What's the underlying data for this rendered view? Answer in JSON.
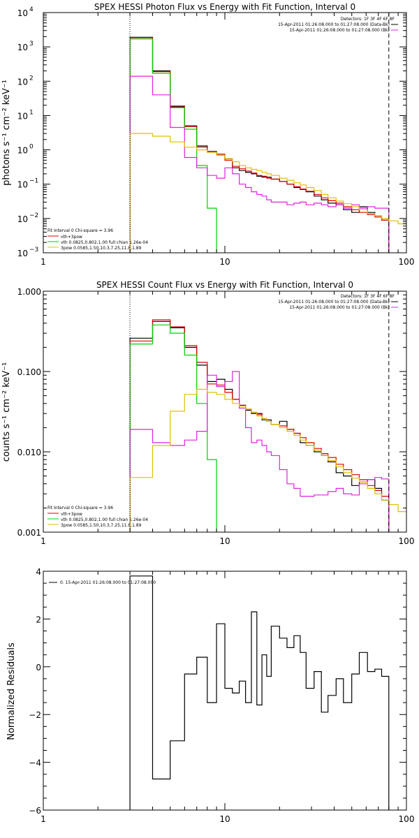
{
  "chart_data": [
    {
      "type": "line",
      "title": "SPEX HESSI Photon Flux vs Energy with Fit Function, Interval 0",
      "xlabel": "",
      "ylabel": "photons s⁻¹ cm⁻² keV⁻¹",
      "xscale": "log",
      "yscale": "log",
      "xlim": [
        1,
        100
      ],
      "ylim": [
        0.001,
        10000
      ],
      "xticks": [
        {
          "v": 1,
          "t": "1"
        },
        {
          "v": 10,
          "t": "10"
        },
        {
          "v": 100,
          "t": "100"
        }
      ],
      "yticks": [
        {
          "v": 0.001,
          "b": "10",
          "e": "−3"
        },
        {
          "v": 0.01,
          "b": "10",
          "e": "−2"
        },
        {
          "v": 0.1,
          "b": "10",
          "e": "−1"
        },
        {
          "v": 1,
          "b": "10",
          "e": "0"
        },
        {
          "v": 10,
          "b": "10",
          "e": "1"
        },
        {
          "v": 100,
          "b": "10",
          "e": "2"
        },
        {
          "v": 1000,
          "b": "10",
          "e": "3"
        },
        {
          "v": 10000,
          "b": "10",
          "e": "4"
        }
      ],
      "vlines": [
        {
          "x": 3,
          "style": "dotted"
        },
        {
          "x": 80,
          "style": "dashed"
        }
      ],
      "legend_top": [
        "Detectors: 1F 3F 4F 6F 8F",
        "15-Apr-2011 01:26:08.000 to 01:27:08.000 (Data-Bk)",
        "15-Apr-2011 01:26:08.000 to 01:27:08.000 (Bk)"
      ],
      "legend_bottom": [
        "Fit Interval 0   Chi-square = 3.96",
        "vth+3pow",
        "vth 0.0825,0.802,1.00  full chian 1.26e-04",
        "3pow 0.0585,1.50,10.3,7.25,11.8,1.89"
      ],
      "series": [
        {
          "color": "#000000",
          "edges": [
            3,
            4,
            5,
            6,
            7,
            8,
            9,
            10,
            11,
            12,
            13,
            14,
            15,
            16,
            17,
            18,
            20,
            22,
            24,
            26,
            28,
            31,
            34,
            37,
            41,
            45,
            50,
            55,
            61,
            67,
            73,
            80
          ],
          "values": [
            1900,
            200,
            18,
            5,
            1.3,
            0.9,
            0.7,
            0.55,
            0.3,
            0.25,
            0.22,
            0.2,
            0.17,
            0.16,
            0.16,
            0.14,
            0.12,
            0.1,
            0.08,
            0.07,
            0.06,
            0.045,
            0.035,
            0.028,
            0.025,
            0.018,
            0.015,
            0.022,
            0.015,
            0.012,
            0.009
          ]
        },
        {
          "color": "#e00000",
          "edges": [
            3,
            4,
            5,
            6,
            7,
            8,
            9,
            10,
            11,
            12,
            13,
            14,
            15,
            16,
            17,
            18,
            20,
            22,
            24,
            26,
            28,
            31,
            34,
            37,
            41,
            45,
            50,
            55,
            61,
            67,
            73,
            80
          ],
          "values": [
            1850,
            190,
            19,
            4.8,
            1.2,
            0.85,
            0.75,
            0.5,
            0.33,
            0.28,
            0.24,
            0.21,
            0.18,
            0.17,
            0.15,
            0.14,
            0.12,
            0.1,
            0.085,
            0.072,
            0.062,
            0.05,
            0.04,
            0.033,
            0.028,
            0.022,
            0.018,
            0.015,
            0.013,
            0.011,
            0.009
          ]
        },
        {
          "color": "#00d000",
          "edges": [
            3,
            4,
            5,
            6,
            7,
            8,
            9
          ],
          "values": [
            1700,
            170,
            17,
            4,
            0.35,
            0.02
          ]
        },
        {
          "color": "#e020e0",
          "edges": [
            3,
            4,
            5,
            6,
            7,
            8,
            9,
            10,
            11,
            12,
            13,
            14,
            15,
            16,
            17,
            18,
            20,
            22,
            24,
            26,
            28,
            31,
            34,
            37,
            41,
            45,
            50,
            55,
            61,
            67,
            73,
            80
          ],
          "values": [
            140,
            40,
            4.5,
            0.6,
            0.3,
            0.18,
            0.15,
            0.3,
            0.2,
            0.1,
            0.08,
            0.06,
            0.05,
            0.045,
            0.035,
            0.03,
            0.03,
            0.025,
            0.028,
            0.03,
            0.025,
            0.028,
            0.025,
            0.022,
            0.025,
            0.02,
            0.025,
            0.02,
            0.022,
            0.02,
            0.02
          ]
        },
        {
          "color": "#e0c000",
          "edges": [
            3,
            4,
            5,
            6,
            7,
            8,
            9,
            10,
            11,
            12,
            13,
            14,
            15,
            16,
            17,
            18,
            20,
            22,
            24,
            26,
            28,
            31,
            34,
            37,
            41,
            45,
            50,
            55,
            61,
            67,
            73,
            80,
            90,
            100
          ],
          "values": [
            3,
            2.5,
            1.7,
            1.2,
            1,
            0.85,
            0.7,
            0.55,
            0.45,
            0.35,
            0.3,
            0.27,
            0.25,
            0.22,
            0.2,
            0.18,
            0.15,
            0.13,
            0.11,
            0.095,
            0.08,
            0.065,
            0.05,
            0.04,
            0.032,
            0.027,
            0.022,
            0.018,
            0.014,
            0.012,
            0.01,
            0.0085,
            0.007
          ]
        }
      ]
    },
    {
      "type": "line",
      "title": "SPEX HESSI Count Flux vs Energy with Fit Function, Interval 0",
      "xlabel": "",
      "ylabel": "counts s⁻¹ cm⁻² keV⁻¹",
      "xscale": "log",
      "yscale": "log",
      "xlim": [
        1,
        100
      ],
      "ylim": [
        0.001,
        1
      ],
      "xticks": [
        {
          "v": 1,
          "t": "1"
        },
        {
          "v": 10,
          "t": "10"
        },
        {
          "v": 100,
          "t": "100"
        }
      ],
      "yticks": [
        {
          "v": 0.001,
          "t": "0.001"
        },
        {
          "v": 0.01,
          "t": "0.010"
        },
        {
          "v": 0.1,
          "t": "0.100"
        },
        {
          "v": 1,
          "t": "1.000"
        }
      ],
      "vlines": [
        {
          "x": 3,
          "style": "dotted"
        },
        {
          "x": 80,
          "style": "dashed"
        }
      ],
      "legend_top": [
        "Detectors: 1F 3F 4F 6F 8F",
        "15-Apr-2011 01:26:08.000 to 01:27:08.000 (Data-Bk)",
        "15-Apr-2011 01:26:08.000 to 01:27:08.000 (Bk)"
      ],
      "legend_bottom": [
        "Fit Interval 0   Chi-square = 3.96",
        "vth+3pow",
        "vth 0.0825,0.802,1.00  full chian 1.26e-04",
        "3pow 0.0585,1.50,10.3,7.25,11.8,1.89"
      ],
      "series": [
        {
          "color": "#000000",
          "edges": [
            3,
            4,
            5,
            6,
            7,
            8,
            9,
            10,
            11,
            12,
            13,
            14,
            15,
            16,
            17,
            18,
            20,
            22,
            24,
            26,
            28,
            31,
            34,
            37,
            41,
            45,
            50,
            55,
            61,
            67,
            73,
            80
          ],
          "values": [
            0.26,
            0.42,
            0.35,
            0.2,
            0.12,
            0.075,
            0.08,
            0.06,
            0.045,
            0.038,
            0.033,
            0.03,
            0.03,
            0.025,
            0.025,
            0.022,
            0.024,
            0.019,
            0.017,
            0.013,
            0.012,
            0.01,
            0.009,
            0.0075,
            0.0055,
            0.005,
            0.0038,
            0.0042,
            0.0045,
            0.0035,
            0.0025
          ]
        },
        {
          "color": "#e00000",
          "edges": [
            3,
            4,
            5,
            6,
            7,
            8,
            9,
            10,
            11,
            12,
            13,
            14,
            15,
            16,
            17,
            18,
            20,
            22,
            24,
            26,
            28,
            31,
            34,
            37,
            41,
            45,
            50,
            55,
            61,
            67,
            73,
            80
          ],
          "values": [
            0.24,
            0.44,
            0.36,
            0.21,
            0.13,
            0.07,
            0.068,
            0.055,
            0.045,
            0.038,
            0.034,
            0.031,
            0.029,
            0.026,
            0.024,
            0.022,
            0.021,
            0.019,
            0.017,
            0.015,
            0.013,
            0.011,
            0.0095,
            0.0085,
            0.007,
            0.006,
            0.0052,
            0.0045,
            0.0038,
            0.0033,
            0.0028
          ]
        },
        {
          "color": "#00d000",
          "edges": [
            3,
            4,
            5,
            6,
            7,
            8,
            9
          ],
          "values": [
            0.22,
            0.38,
            0.3,
            0.16,
            0.04,
            0.008
          ]
        },
        {
          "color": "#e020e0",
          "edges": [
            3,
            4,
            5,
            6,
            7,
            8,
            9,
            10,
            11,
            12,
            13,
            14,
            15,
            16,
            17,
            18,
            20,
            22,
            24,
            26,
            28,
            31,
            34,
            37,
            41,
            45,
            50,
            55,
            61,
            67,
            73,
            80
          ],
          "values": [
            0.019,
            0.013,
            0.012,
            0.014,
            0.018,
            0.09,
            0.065,
            0.075,
            0.1,
            0.035,
            0.02,
            0.013,
            0.014,
            0.012,
            0.01,
            0.009,
            0.006,
            0.004,
            0.0035,
            0.0028,
            0.0028,
            0.0029,
            0.0029,
            0.0032,
            0.0035,
            0.003,
            0.0029,
            0.004,
            0.0045,
            0.0048,
            0.0046
          ]
        },
        {
          "color": "#e0c000",
          "edges": [
            3,
            4,
            5,
            6,
            7,
            8,
            9,
            10,
            11,
            12,
            13,
            14,
            15,
            16,
            17,
            18,
            20,
            22,
            24,
            26,
            28,
            31,
            34,
            37,
            41,
            45,
            50,
            55,
            61,
            67,
            73,
            80,
            90,
            100
          ],
          "values": [
            0.0048,
            0.012,
            0.032,
            0.052,
            0.06,
            0.055,
            0.052,
            0.045,
            0.04,
            0.037,
            0.034,
            0.031,
            0.028,
            0.026,
            0.024,
            0.022,
            0.02,
            0.018,
            0.016,
            0.014,
            0.012,
            0.0105,
            0.009,
            0.0078,
            0.0065,
            0.0055,
            0.0047,
            0.0042,
            0.0035,
            0.003,
            0.0025,
            0.0022,
            0.0018
          ]
        }
      ]
    },
    {
      "type": "line",
      "title": "",
      "xlabel": "",
      "ylabel": "Normalized Residuals",
      "xscale": "log",
      "yscale": "linear",
      "xlim": [
        1,
        100
      ],
      "ylim": [
        -6,
        4
      ],
      "xticks": [
        {
          "v": 1,
          "t": "1"
        },
        {
          "v": 10,
          "t": "10"
        },
        {
          "v": 100,
          "t": "100"
        }
      ],
      "yticks": [
        {
          "v": -6,
          "t": "−6"
        },
        {
          "v": -4,
          "t": "−4"
        },
        {
          "v": -2,
          "t": "−2"
        },
        {
          "v": 0,
          "t": "0"
        },
        {
          "v": 2,
          "t": "2"
        },
        {
          "v": 4,
          "t": "4"
        }
      ],
      "legend_top": [
        "0. 15-Apr-2011 01:26:08.000 to 01:27:08.000"
      ],
      "series": [
        {
          "color": "#000000",
          "edges": [
            3,
            4,
            5,
            6,
            7,
            8,
            9,
            10,
            11,
            12,
            13,
            14,
            15,
            16,
            17,
            18,
            20,
            22,
            24,
            26,
            28,
            31,
            34,
            37,
            41,
            45,
            50,
            55,
            61,
            67,
            73,
            80
          ],
          "values": [
            3.8,
            -4.7,
            -3.1,
            -0.3,
            0.4,
            -1.5,
            1.8,
            -0.9,
            -1.1,
            -0.6,
            -1.5,
            2.3,
            -1.6,
            0.5,
            -0.4,
            1.7,
            1.2,
            0.8,
            1.3,
            0.6,
            -0.9,
            -0.2,
            -1.9,
            -1.2,
            -0.5,
            -1.5,
            -0.3,
            0.6,
            -0.2,
            -0.1,
            -0.4
          ]
        }
      ]
    }
  ]
}
